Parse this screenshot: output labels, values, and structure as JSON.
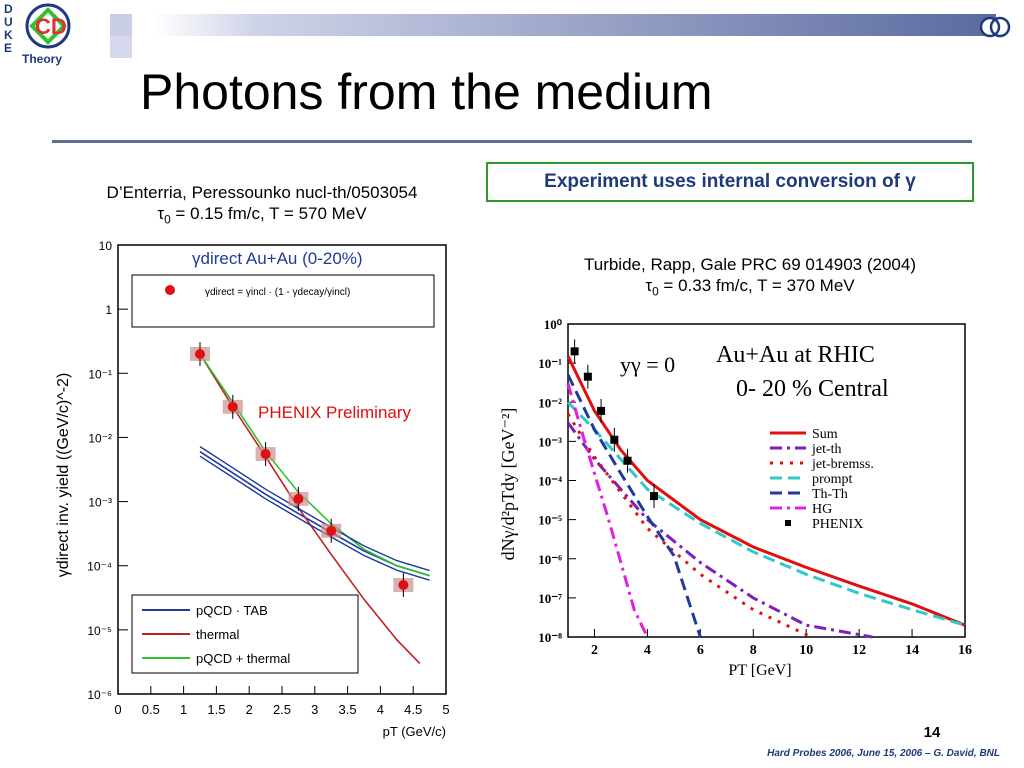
{
  "slide": {
    "title": "Photons from the medium",
    "highlight": "Experiment uses internal conversion of γ",
    "left_ref": {
      "line1": "D’Enterria, Peressounko nucl-th/0503054",
      "tau": "τ",
      "line2_sub": "0",
      "line2_rest": " = 0.15 fm/c, T = 570 MeV"
    },
    "right_ref": {
      "line1": "Turbide, Rapp, Gale PRC 69 014903 (2004)",
      "tau": "τ",
      "line2_sub": "0",
      "line2_rest": " = 0.33 fm/c, T = 370 MeV"
    },
    "page_number": "14",
    "footer": "Hard Probes 2006, June 15, 2006 – G. David, BNL"
  },
  "logo": {
    "letters": [
      "D",
      "U",
      "K",
      "E"
    ],
    "text": "Theory",
    "mark": "CD"
  },
  "colors": {
    "navy": "#1e3a7a",
    "red": "#e01010",
    "green": "#2e9a2e",
    "rule": "#5f6f8f"
  },
  "chart_data": [
    {
      "type": "line",
      "title": "γdirect Au+Au (0-20%)",
      "annotation": "PHENIX Preliminary",
      "formula": "γdirect = γincl · (1 - γdecay/γincl)",
      "xlabel": "pT (GeV/c)",
      "ylabel": "γdirect inv. yield ((GeV/c)^-2)",
      "xlim": [
        0,
        5
      ],
      "ylim_log10": [
        -6,
        1
      ],
      "x_ticks": [
        "0",
        "0.5",
        "1",
        "1.5",
        "2",
        "2.5",
        "3",
        "3.5",
        "4",
        "4.5",
        "5"
      ],
      "y_ticks": [
        "10",
        "1",
        "10⁻¹",
        "10⁻²",
        "10⁻³",
        "10⁻⁴",
        "10⁻⁵",
        "10⁻⁶"
      ],
      "series": [
        {
          "name": "pQCD · TAB",
          "color": "#1e3a9a",
          "x": [
            1.25,
            1.75,
            2.25,
            2.75,
            3.25,
            3.75,
            4.25,
            4.75
          ],
          "y": [
            0.006,
            0.0028,
            0.0013,
            0.00065,
            0.00033,
            0.00017,
            0.0001,
            7e-05
          ]
        },
        {
          "name": "thermal",
          "color": "#c02020",
          "x": [
            1.25,
            1.75,
            2.25,
            2.75,
            3.25,
            3.75,
            4.25,
            4.6
          ],
          "y": [
            0.2,
            0.03,
            0.005,
            0.0008,
            0.00015,
            3e-05,
            7e-06,
            3e-06
          ]
        },
        {
          "name": "pQCD + thermal",
          "color": "#30c030",
          "x": [
            1.25,
            1.75,
            2.25,
            2.75,
            3.25,
            3.75,
            4.25,
            4.75
          ],
          "y": [
            0.2,
            0.035,
            0.006,
            0.0014,
            0.00045,
            0.00018,
            0.0001,
            7e-05
          ]
        }
      ],
      "data_points": {
        "name": "PHENIX",
        "x": [
          1.25,
          1.75,
          2.25,
          2.75,
          3.25,
          4.35
        ],
        "y": [
          0.2,
          0.03,
          0.0055,
          0.0011,
          0.00035,
          5e-05
        ]
      }
    },
    {
      "type": "line",
      "annotation": "yγ = 0",
      "title_line1": "Au+Au at RHIC",
      "title_line2": "0- 20 % Central",
      "xlabel": "PT [GeV]",
      "ylabel": "dNγ/d²pTdy [GeV⁻²]",
      "xlim": [
        1,
        16
      ],
      "ylim_log10": [
        -8,
        0
      ],
      "x_ticks": [
        "2",
        "4",
        "6",
        "8",
        "10",
        "12",
        "14",
        "16"
      ],
      "y_ticks": [
        "10⁰",
        "10⁻¹",
        "10⁻²",
        "10⁻³",
        "10⁻⁴",
        "10⁻⁵",
        "10⁻⁶",
        "10⁻⁷",
        "10⁻⁸"
      ],
      "series": [
        {
          "name": "Sum",
          "color": "#e01010",
          "style": "solid",
          "x": [
            1,
            2,
            3,
            4,
            6,
            8,
            10,
            12,
            14,
            16
          ],
          "y": [
            0.15,
            0.006,
            0.0006,
            0.0001,
            1e-05,
            2e-06,
            6e-07,
            2e-07,
            7e-08,
            2e-08
          ]
        },
        {
          "name": "jet-th",
          "color": "#7a20c0",
          "style": "dashdot",
          "x": [
            1,
            2,
            4,
            6,
            8,
            10,
            12.5
          ],
          "y": [
            0.003,
            0.00035,
            1e-05,
            8e-07,
            1e-07,
            2e-08,
            1e-08
          ]
        },
        {
          "name": "jet-bremss.",
          "color": "#e01010",
          "style": "dotted",
          "x": [
            1,
            2,
            4,
            6,
            8,
            10.2
          ],
          "y": [
            0.005,
            0.0004,
            6e-06,
            4e-07,
            5e-08,
            1e-08
          ]
        },
        {
          "name": "prompt",
          "color": "#30c8c8",
          "style": "dashed",
          "x": [
            1,
            2,
            4,
            6,
            8,
            10,
            12,
            14,
            16
          ],
          "y": [
            0.01,
            0.002,
            6e-05,
            8e-06,
            1.5e-06,
            4e-07,
            1.3e-07,
            5e-08,
            2e-08
          ]
        },
        {
          "name": "Th-Th",
          "color": "#1e3aa0",
          "style": "dashed",
          "x": [
            1,
            2,
            3,
            4,
            5,
            6
          ],
          "y": [
            0.05,
            0.002,
            0.00015,
            1.2e-05,
            1.2e-06,
            1e-08
          ]
        },
        {
          "name": "HG",
          "color": "#e020e0",
          "style": "dashdot",
          "x": [
            1,
            1.5,
            2,
            2.5,
            3,
            3.5,
            4
          ],
          "y": [
            0.03,
            0.002,
            0.00015,
            1.2e-05,
            8e-07,
            5e-08,
            1e-08
          ]
        }
      ],
      "data_points": {
        "name": "PHENIX",
        "x": [
          1.25,
          1.75,
          2.25,
          2.75,
          3.25,
          4.25
        ],
        "y": [
          0.2,
          0.045,
          0.006,
          0.0011,
          0.00032,
          4e-05
        ]
      }
    }
  ]
}
